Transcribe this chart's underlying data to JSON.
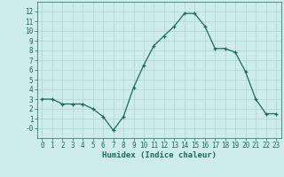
{
  "x": [
    0,
    1,
    2,
    3,
    4,
    5,
    6,
    7,
    8,
    9,
    10,
    11,
    12,
    13,
    14,
    15,
    16,
    17,
    18,
    19,
    20,
    21,
    22,
    23
  ],
  "y": [
    3.0,
    3.0,
    2.5,
    2.5,
    2.5,
    2.0,
    1.2,
    -0.2,
    1.2,
    4.2,
    6.5,
    8.5,
    9.5,
    10.5,
    11.8,
    11.8,
    10.5,
    8.2,
    8.2,
    7.8,
    5.8,
    3.0,
    1.5,
    1.5
  ],
  "title": "",
  "xlabel": "Humidex (Indice chaleur)",
  "ylabel": "",
  "line_color": "#1a6b5a",
  "marker_color": "#1a6b5a",
  "bg_color": "#ceecea",
  "grid_color": "#b0d4d0",
  "tick_label_color": "#1a6b5a",
  "axis_label_color": "#1a6b5a",
  "ylim": [
    -1,
    13
  ],
  "xlim": [
    -0.5,
    23.5
  ],
  "yticks": [
    0,
    1,
    2,
    3,
    4,
    5,
    6,
    7,
    8,
    9,
    10,
    11,
    12
  ],
  "xticks": [
    0,
    1,
    2,
    3,
    4,
    5,
    6,
    7,
    8,
    9,
    10,
    11,
    12,
    13,
    14,
    15,
    16,
    17,
    18,
    19,
    20,
    21,
    22,
    23
  ],
  "tick_fontsize": 5.5,
  "xlabel_fontsize": 6.5
}
